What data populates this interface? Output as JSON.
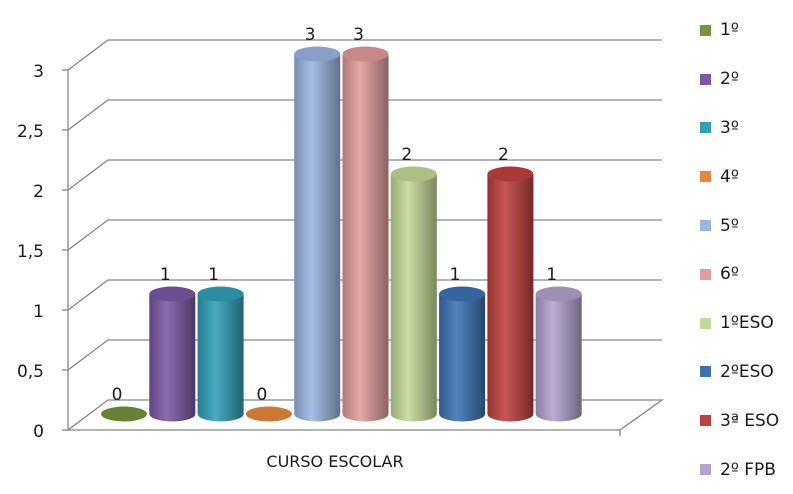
{
  "chart_data": {
    "type": "bar",
    "variant": "3d-cylinder",
    "title": "",
    "xlabel": "CURSO ESCOLAR",
    "ylabel": "",
    "ylim": [
      0,
      3
    ],
    "yticks": [
      "0",
      "0,5",
      "1",
      "1,5",
      "2",
      "2,5",
      "3"
    ],
    "grid": true,
    "legend_position": "right",
    "series": [
      {
        "name": "1º",
        "value": 0,
        "label": "0",
        "color": "#77933C"
      },
      {
        "name": "2º",
        "value": 1,
        "label": "1",
        "color": "#7A58A6"
      },
      {
        "name": "3º",
        "value": 1,
        "label": "1",
        "color": "#31A0B8"
      },
      {
        "name": "4º",
        "value": 0,
        "label": "0",
        "color": "#E8873A"
      },
      {
        "name": "5º",
        "value": 3,
        "label": "3",
        "color": "#9AB6E2"
      },
      {
        "name": "6º",
        "value": 3,
        "label": "3",
        "color": "#E39B9B"
      },
      {
        "name": "1ºESO",
        "value": 2,
        "label": "2",
        "color": "#C3DA96"
      },
      {
        "name": "2ºESO",
        "value": 1,
        "label": "1",
        "color": "#3C72B4"
      },
      {
        "name": "3ª ESO",
        "value": 2,
        "label": "2",
        "color": "#C0403E"
      },
      {
        "name": "2º FPB",
        "value": 1,
        "label": "1",
        "color": "#B3A2CD"
      }
    ]
  }
}
